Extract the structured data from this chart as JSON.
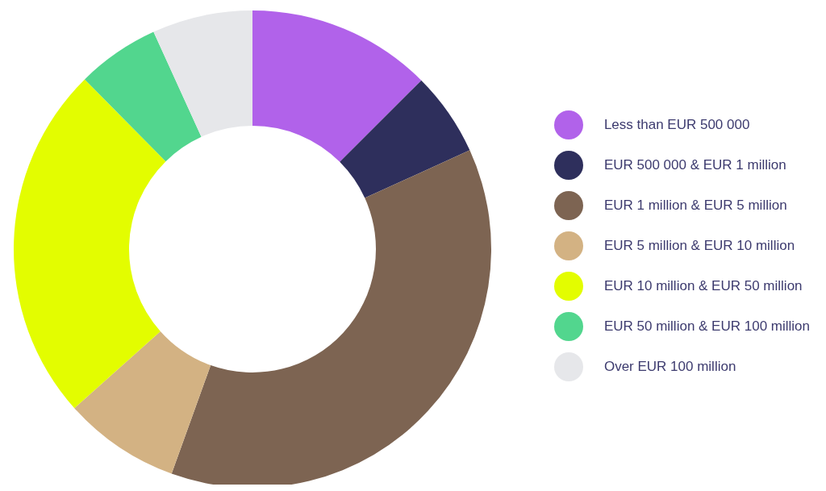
{
  "chart_data": {
    "type": "donut",
    "categories": [
      "Less than EUR 500 000",
      "EUR 500 000 & EUR 1 million",
      "EUR 1 million & EUR 5 million",
      "EUR 5 million & EUR 10 million",
      "EUR 10 million & EUR 50 million",
      "EUR 50 million & EUR 100 million",
      "Over EUR 100 million"
    ],
    "values": [
      12.5,
      5.7,
      37.3,
      7.9,
      24.2,
      5.6,
      6.8
    ],
    "colors": [
      "#b162ea",
      "#2e2f5c",
      "#7d6452",
      "#d3b283",
      "#e3fd00",
      "#52d68e",
      "#e6e7ea"
    ],
    "legend": "right"
  }
}
